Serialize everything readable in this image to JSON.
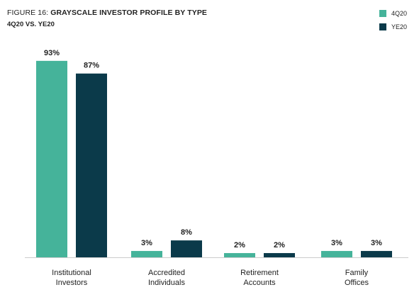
{
  "title_prefix": "FIGURE 16: ",
  "title_main": "GRAYSCALE INVESTOR PROFILE BY TYPE",
  "subtitle": "4Q20 VS. YE20",
  "colors": {
    "series1": "#45b39a",
    "series2": "#0b3a4a",
    "axis": "#cccccc",
    "text": "#222222"
  },
  "chart_data": {
    "type": "bar",
    "title": "FIGURE 16: GRAYSCALE INVESTOR PROFILE BY TYPE",
    "subtitle": "4Q20 VS. YE20",
    "categories": [
      [
        "Institutional",
        "Investors"
      ],
      [
        "Accredited",
        "Individuals"
      ],
      [
        "Retirement",
        "Accounts"
      ],
      [
        "Family",
        "Offices"
      ]
    ],
    "series": [
      {
        "name": "4Q20",
        "values": [
          93,
          3,
          2,
          3
        ],
        "labels": [
          "93%",
          "3%",
          "2%",
          "3%"
        ]
      },
      {
        "name": "YE20",
        "values": [
          87,
          8,
          2,
          3
        ],
        "labels": [
          "87%",
          "8%",
          "2%",
          "3%"
        ]
      }
    ],
    "ylim": [
      0,
      100
    ],
    "grid": false,
    "legend": "top-right"
  }
}
